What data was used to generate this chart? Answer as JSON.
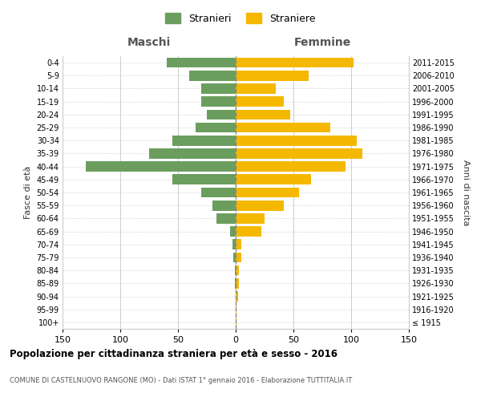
{
  "age_groups": [
    "100+",
    "95-99",
    "90-94",
    "85-89",
    "80-84",
    "75-79",
    "70-74",
    "65-69",
    "60-64",
    "55-59",
    "50-54",
    "45-49",
    "40-44",
    "35-39",
    "30-34",
    "25-29",
    "20-24",
    "15-19",
    "10-14",
    "5-9",
    "0-4"
  ],
  "birth_years": [
    "≤ 1915",
    "1916-1920",
    "1921-1925",
    "1926-1930",
    "1931-1935",
    "1936-1940",
    "1941-1945",
    "1946-1950",
    "1951-1955",
    "1956-1960",
    "1961-1965",
    "1966-1970",
    "1971-1975",
    "1976-1980",
    "1981-1985",
    "1986-1990",
    "1991-1995",
    "1996-2000",
    "2001-2005",
    "2006-2010",
    "2011-2015"
  ],
  "maschi": [
    0,
    0,
    0,
    1,
    1,
    2,
    3,
    5,
    17,
    20,
    30,
    55,
    130,
    75,
    55,
    35,
    25,
    30,
    30,
    40,
    60
  ],
  "femmine": [
    1,
    1,
    2,
    3,
    3,
    5,
    5,
    22,
    25,
    42,
    55,
    65,
    95,
    110,
    105,
    82,
    47,
    42,
    35,
    63,
    102
  ],
  "color_maschi": "#6b9e5e",
  "color_femmine": "#f5b800",
  "color_dashed_line": "#888888",
  "title": "Popolazione per cittadinanza straniera per età e sesso - 2016",
  "subtitle": "COMUNE DI CASTELNUOVO RANGONE (MO) - Dati ISTAT 1° gennaio 2016 - Elaborazione TUTTITALIA.IT",
  "xlabel_left": "Maschi",
  "xlabel_right": "Femmine",
  "ylabel_left": "Fasce di età",
  "ylabel_right": "Anni di nascita",
  "legend_maschi": "Stranieri",
  "legend_femmine": "Straniere",
  "xlim": 150,
  "background_color": "#ffffff",
  "grid_color": "#cccccc"
}
